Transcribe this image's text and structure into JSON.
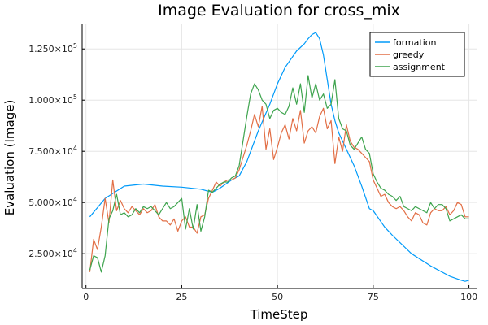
{
  "chart_data": {
    "type": "line",
    "title": "Image Evaluation for cross_mix",
    "xlabel": "TimeStep",
    "ylabel": "Evaluation (Image)",
    "xlim": [
      -1,
      102
    ],
    "ylim": [
      8000,
      137000
    ],
    "x_ticks": [
      0,
      25,
      50,
      75,
      100
    ],
    "x_tick_labels": [
      "0",
      "25",
      "50",
      "75",
      "100"
    ],
    "y_ticks": [
      25000,
      50000,
      75000,
      100000,
      125000
    ],
    "y_tick_labels": [
      {
        "mantissa": "2.500",
        "exp": "4"
      },
      {
        "mantissa": "5.000",
        "exp": "4"
      },
      {
        "mantissa": "7.500",
        "exp": "4"
      },
      {
        "mantissa": "1.000",
        "exp": "5"
      },
      {
        "mantissa": "1.250",
        "exp": "5"
      }
    ],
    "grid": true,
    "legend_position": "top-right",
    "series": [
      {
        "name": "formation",
        "color": "#009af9",
        "x": [
          1,
          5,
          10,
          15,
          20,
          25,
          30,
          33,
          35,
          38,
          40,
          42,
          45,
          48,
          50,
          52,
          55,
          57,
          58,
          59,
          60,
          61,
          62,
          63,
          64,
          65,
          66,
          68,
          70,
          72,
          74,
          75,
          78,
          80,
          85,
          90,
          95,
          98,
          99,
          100
        ],
        "y": [
          43000,
          52000,
          58000,
          59000,
          58000,
          57500,
          56500,
          55000,
          57000,
          61000,
          63000,
          70000,
          85000,
          98000,
          108000,
          116000,
          124000,
          127500,
          130000,
          132000,
          133000,
          130000,
          122000,
          110000,
          98000,
          90000,
          84000,
          76000,
          68000,
          58000,
          47000,
          46000,
          38000,
          34000,
          25000,
          19000,
          14000,
          12000,
          11500,
          12000
        ]
      },
      {
        "name": "greedy",
        "color": "#e26f46",
        "x": [
          1,
          2,
          3,
          4,
          5,
          6,
          7,
          8,
          9,
          10,
          11,
          12,
          13,
          14,
          15,
          16,
          17,
          18,
          19,
          20,
          21,
          22,
          23,
          24,
          25,
          26,
          27,
          28,
          29,
          30,
          31,
          32,
          33,
          34,
          35,
          36,
          37,
          38,
          39,
          40,
          41,
          42,
          43,
          44,
          45,
          46,
          47,
          48,
          49,
          50,
          51,
          52,
          53,
          54,
          55,
          56,
          57,
          58,
          59,
          60,
          61,
          62,
          63,
          64,
          65,
          66,
          67,
          68,
          69,
          70,
          71,
          72,
          73,
          74,
          75,
          76,
          77,
          78,
          79,
          80,
          81,
          82,
          83,
          84,
          85,
          86,
          87,
          88,
          89,
          90,
          91,
          92,
          93,
          94,
          95,
          96,
          97,
          98,
          99,
          100
        ],
        "y": [
          16000,
          32000,
          27000,
          38000,
          52000,
          40000,
          61000,
          46000,
          51000,
          47000,
          45000,
          48000,
          46000,
          44000,
          47000,
          45000,
          46000,
          49000,
          43000,
          41000,
          41000,
          39000,
          42000,
          36000,
          41000,
          43000,
          38000,
          38000,
          35000,
          43000,
          44000,
          52000,
          56000,
          60000,
          58000,
          60000,
          61000,
          61000,
          62000,
          66000,
          72000,
          78000,
          85000,
          93000,
          87000,
          97000,
          76000,
          86000,
          71000,
          77000,
          84000,
          88000,
          81000,
          91000,
          85000,
          95000,
          79000,
          85000,
          87000,
          84000,
          92000,
          96000,
          86000,
          90000,
          69000,
          82000,
          75000,
          88000,
          80000,
          77000,
          76000,
          74000,
          72000,
          70000,
          61000,
          57000,
          53000,
          54000,
          50000,
          48000,
          47000,
          48000,
          46000,
          43000,
          41000,
          45000,
          44000,
          40000,
          39000,
          45000,
          47000,
          46000,
          46000,
          48000,
          44000,
          46000,
          50000,
          49000,
          43000,
          43000
        ]
      },
      {
        "name": "assignment",
        "color": "#3ea44e",
        "x": [
          1,
          2,
          3,
          4,
          5,
          6,
          7,
          8,
          9,
          10,
          11,
          12,
          13,
          14,
          15,
          16,
          17,
          18,
          19,
          20,
          21,
          22,
          23,
          24,
          25,
          26,
          27,
          28,
          29,
          30,
          31,
          32,
          33,
          34,
          35,
          36,
          37,
          38,
          39,
          40,
          41,
          42,
          43,
          44,
          45,
          46,
          47,
          48,
          49,
          50,
          51,
          52,
          53,
          54,
          55,
          56,
          57,
          58,
          59,
          60,
          61,
          62,
          63,
          64,
          65,
          66,
          67,
          68,
          69,
          70,
          71,
          72,
          73,
          74,
          75,
          76,
          77,
          78,
          79,
          80,
          81,
          82,
          83,
          84,
          85,
          86,
          87,
          88,
          89,
          90,
          91,
          92,
          93,
          94,
          95,
          96,
          97,
          98,
          99,
          100
        ],
        "y": [
          17000,
          24000,
          23000,
          16000,
          24000,
          42000,
          46000,
          54000,
          44000,
          45000,
          43000,
          44000,
          47000,
          45000,
          48000,
          47000,
          48000,
          46000,
          44000,
          47000,
          50000,
          47000,
          48000,
          50000,
          52000,
          37000,
          47000,
          37000,
          49000,
          36000,
          43000,
          56000,
          55000,
          57000,
          59000,
          60000,
          60000,
          62000,
          63000,
          68000,
          80000,
          92000,
          103000,
          108000,
          105000,
          100000,
          98000,
          91000,
          95000,
          96000,
          94000,
          93000,
          97000,
          106000,
          98000,
          108000,
          94000,
          112000,
          101000,
          108000,
          100000,
          103000,
          96000,
          98000,
          110000,
          91000,
          86000,
          85000,
          78000,
          76000,
          79000,
          82000,
          76000,
          74000,
          64000,
          60000,
          57000,
          56000,
          54000,
          53000,
          51000,
          53000,
          48000,
          47000,
          46000,
          48000,
          47000,
          46000,
          45000,
          50000,
          47000,
          49000,
          49000,
          47000,
          41000,
          42000,
          43000,
          44000,
          42000,
          42000
        ]
      }
    ]
  }
}
